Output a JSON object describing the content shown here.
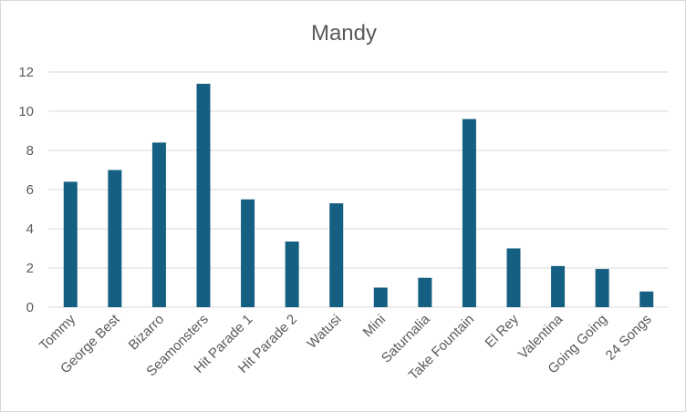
{
  "chart_data": {
    "type": "bar",
    "title": "Mandy",
    "xlabel": "",
    "ylabel": "",
    "ylim": [
      0,
      12
    ],
    "yticks": [
      0,
      2,
      4,
      6,
      8,
      10,
      12
    ],
    "grid": true,
    "legend": "none",
    "bar_color": "#156082",
    "categories": [
      "Tommy",
      "George Best",
      "Bizarro",
      "Seamonsters",
      "Hit Parade 1",
      "Hit Parade 2",
      "Watusi",
      "Mini",
      "Saturnalia",
      "Take Fountain",
      "El Rey",
      "Valentina",
      "Going Going",
      "24 Songs"
    ],
    "values": [
      6.4,
      7.0,
      8.4,
      11.4,
      5.5,
      3.35,
      5.3,
      1.0,
      1.5,
      9.6,
      3.0,
      2.1,
      1.95,
      0.8
    ]
  }
}
